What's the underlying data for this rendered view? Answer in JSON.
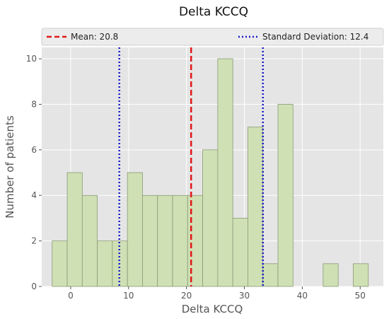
{
  "chart_data": {
    "type": "bar",
    "title": "Delta KCCQ",
    "xlabel": "Delta KCCQ",
    "ylabel": "Number of patients",
    "xlim": [
      -5,
      54
    ],
    "ylim": [
      0,
      10.5
    ],
    "xticks": [
      0,
      10,
      20,
      30,
      40,
      50
    ],
    "yticks": [
      0,
      2,
      4,
      6,
      8,
      10
    ],
    "grid": true,
    "legend_position": "top",
    "bin_width": 2.6,
    "bins": [
      {
        "x_start": -3.2,
        "count": 2
      },
      {
        "x_start": -0.6,
        "count": 5
      },
      {
        "x_start": 2.0,
        "count": 4
      },
      {
        "x_start": 4.6,
        "count": 2
      },
      {
        "x_start": 7.2,
        "count": 2
      },
      {
        "x_start": 9.8,
        "count": 5
      },
      {
        "x_start": 12.4,
        "count": 4
      },
      {
        "x_start": 15.0,
        "count": 4
      },
      {
        "x_start": 17.6,
        "count": 4
      },
      {
        "x_start": 20.2,
        "count": 4
      },
      {
        "x_start": 22.8,
        "count": 6
      },
      {
        "x_start": 25.4,
        "count": 10
      },
      {
        "x_start": 28.0,
        "count": 3
      },
      {
        "x_start": 30.6,
        "count": 7
      },
      {
        "x_start": 33.2,
        "count": 1
      },
      {
        "x_start": 35.8,
        "count": 8
      },
      {
        "x_start": 38.4,
        "count": 0
      },
      {
        "x_start": 41.0,
        "count": 0
      },
      {
        "x_start": 43.6,
        "count": 1
      },
      {
        "x_start": 46.2,
        "count": 0
      },
      {
        "x_start": 48.8,
        "count": 1
      }
    ],
    "mean": {
      "label": "Mean: 20.8",
      "value": 20.8,
      "color": "#e01818"
    },
    "std": {
      "label": "Standard Deviation: 12.4",
      "lines_at": [
        8.4,
        33.2
      ],
      "color": "#1a1acc"
    },
    "bar_color": "#cfe0b4",
    "bar_edge_color": "#8a9a78"
  }
}
